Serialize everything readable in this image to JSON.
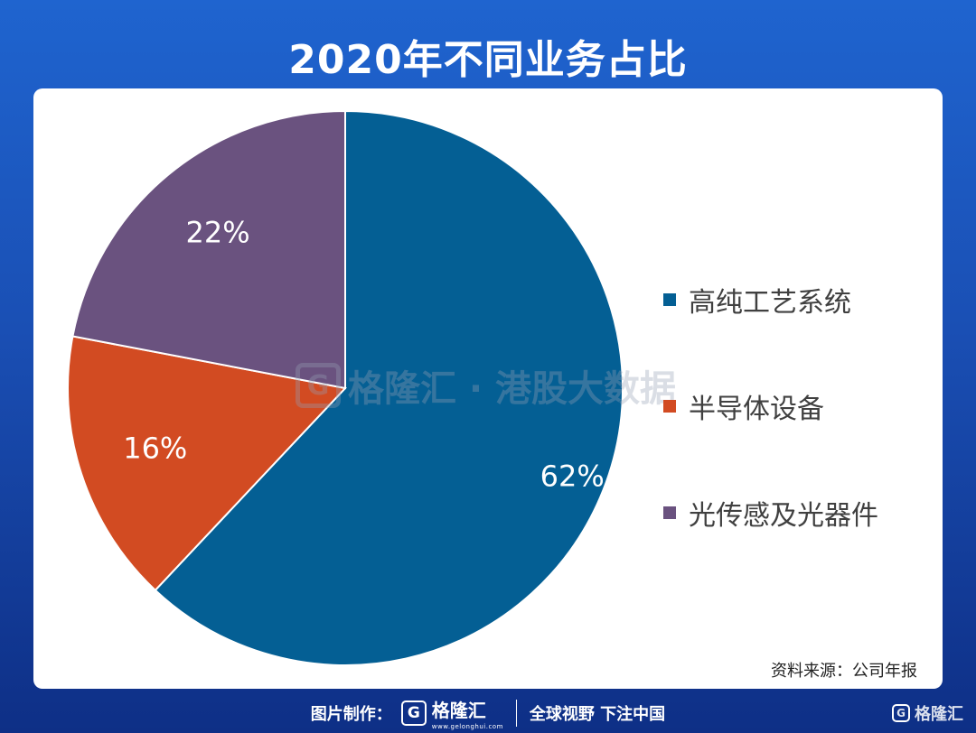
{
  "title": "2020年不同业务占比",
  "source": "资料来源：公司年报",
  "watermark": "格隆汇 · 港股大数据",
  "footer": {
    "made_by": "图片制作：",
    "brand": "格隆汇",
    "brand_logo": "G",
    "brand_url": "www.gelonghui.com",
    "slogan": "全球视野 下注中国"
  },
  "corner_brand": "格隆汇",
  "chart_data": {
    "type": "pie",
    "title": "2020年不同业务占比",
    "legend_position": "right",
    "slices": [
      {
        "label": "高纯工艺系统",
        "value": 62,
        "display": "62%",
        "color": "#045f94"
      },
      {
        "label": "半导体设备",
        "value": 16,
        "display": "16%",
        "color": "#d24b22"
      },
      {
        "label": "光传感及光器件",
        "value": 22,
        "display": "22%",
        "color": "#6a527f"
      }
    ]
  }
}
